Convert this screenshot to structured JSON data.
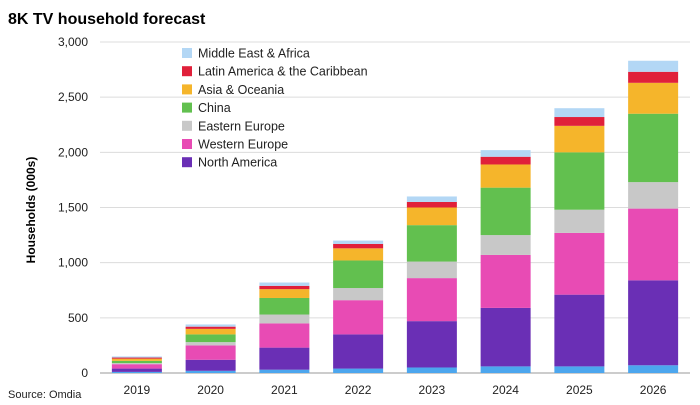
{
  "chart_data": {
    "type": "bar",
    "stacked": true,
    "title": "8K TV household forecast",
    "ylabel": "Households (000s)",
    "xlabel": "",
    "source": "Source: Omdia",
    "ylim": [
      0,
      3000
    ],
    "yticks": [
      "0",
      "500",
      "1,000",
      "1,500",
      "2,000",
      "2,500",
      "3,000"
    ],
    "ytick_values": [
      0,
      500,
      1000,
      1500,
      2000,
      2500,
      3000
    ],
    "grid": true,
    "legend_position": "top-left",
    "categories": [
      "2019",
      "2020",
      "2021",
      "2022",
      "2023",
      "2024",
      "2025",
      "2026"
    ],
    "series": [
      {
        "name": "North America",
        "color": "#6a2fb5",
        "values": [
          30,
          100,
          200,
          310,
          420,
          530,
          650,
          770
        ]
      },
      {
        "name": "Western Europe",
        "color": "#e84bb4",
        "values": [
          40,
          130,
          220,
          310,
          390,
          480,
          560,
          650
        ]
      },
      {
        "name": "Eastern Europe",
        "color": "#c8c8c8",
        "values": [
          10,
          30,
          80,
          110,
          150,
          180,
          210,
          240
        ]
      },
      {
        "name": "China",
        "color": "#62c04f",
        "values": [
          20,
          70,
          150,
          250,
          330,
          430,
          520,
          620
        ]
      },
      {
        "name": "Asia & Oceania",
        "color": "#f5b52b",
        "values": [
          20,
          50,
          80,
          110,
          160,
          210,
          240,
          280
        ]
      },
      {
        "name": "Latin America & the Caribbean",
        "color": "#e0203a",
        "values": [
          10,
          20,
          30,
          40,
          50,
          70,
          80,
          100
        ]
      },
      {
        "name": "Middle East & Africa",
        "color": "#b3d7f5",
        "values": [
          10,
          20,
          30,
          30,
          50,
          60,
          80,
          100
        ]
      }
    ],
    "base_color": "#4ca6ee",
    "base_values": [
      10,
      20,
      30,
      40,
      50,
      60,
      60,
      70
    ]
  }
}
